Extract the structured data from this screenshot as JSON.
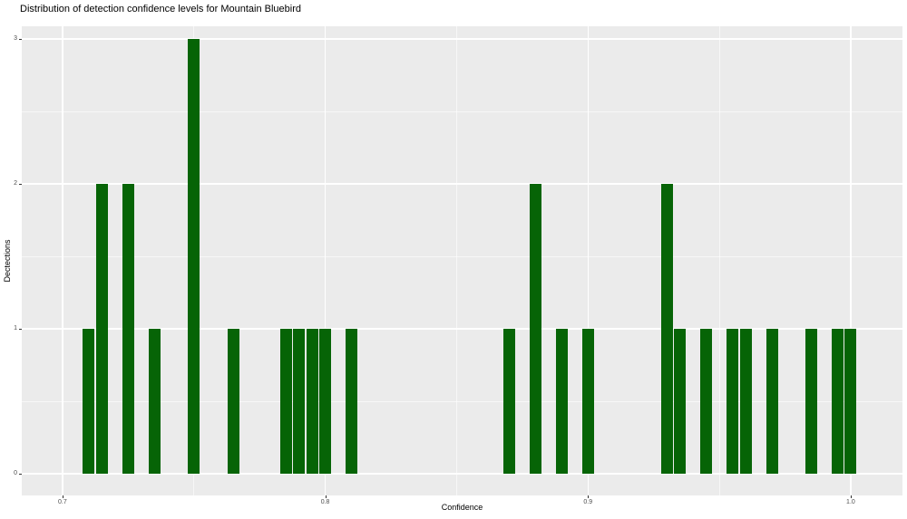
{
  "title": "Distribution of detection confidence levels for Mountain Bluebird",
  "chart_data": {
    "type": "bar",
    "subtype": "histogram",
    "title": "Distribution of detection confidence levels for Mountain Bluebird",
    "xlabel": "Confidence",
    "ylabel": "Dectections",
    "legend": "none",
    "grid": true,
    "binwidth": 0.005,
    "xlim": [
      0.6845,
      1.0197
    ],
    "ylim": [
      -0.15,
      3.0875
    ],
    "x_major_ticks": [
      0.7,
      0.8,
      0.9,
      1.0
    ],
    "x_tick_labels": [
      "0.7",
      "0.8",
      "0.9",
      "1.0"
    ],
    "x_minor_ticks": [
      0.75,
      0.85,
      0.95
    ],
    "y_major_ticks": [
      0,
      1,
      2,
      3
    ],
    "y_tick_labels": [
      "0",
      "1",
      "2",
      "3"
    ],
    "y_minor_ticks": [
      0.5,
      1.5,
      2.5
    ],
    "bins": [
      {
        "x": 0.71,
        "count": 1
      },
      {
        "x": 0.715,
        "count": 2
      },
      {
        "x": 0.725,
        "count": 2
      },
      {
        "x": 0.735,
        "count": 1
      },
      {
        "x": 0.75,
        "count": 3
      },
      {
        "x": 0.765,
        "count": 1
      },
      {
        "x": 0.785,
        "count": 1
      },
      {
        "x": 0.79,
        "count": 1
      },
      {
        "x": 0.795,
        "count": 1
      },
      {
        "x": 0.8,
        "count": 1
      },
      {
        "x": 0.81,
        "count": 1
      },
      {
        "x": 0.87,
        "count": 1
      },
      {
        "x": 0.88,
        "count": 2
      },
      {
        "x": 0.89,
        "count": 1
      },
      {
        "x": 0.9,
        "count": 1
      },
      {
        "x": 0.93,
        "count": 2
      },
      {
        "x": 0.935,
        "count": 1
      },
      {
        "x": 0.945,
        "count": 1
      },
      {
        "x": 0.955,
        "count": 1
      },
      {
        "x": 0.96,
        "count": 1
      },
      {
        "x": 0.97,
        "count": 1
      },
      {
        "x": 0.985,
        "count": 1
      },
      {
        "x": 0.995,
        "count": 1
      },
      {
        "x": 1.0,
        "count": 1
      }
    ],
    "colors": {
      "bar_fill": "#066406",
      "panel_background": "#EBEBEB",
      "gridline": "#FFFFFF",
      "tick_text": "#4D4D4D",
      "title_text": "#000000",
      "figure_background": "#FFFFFF"
    }
  }
}
